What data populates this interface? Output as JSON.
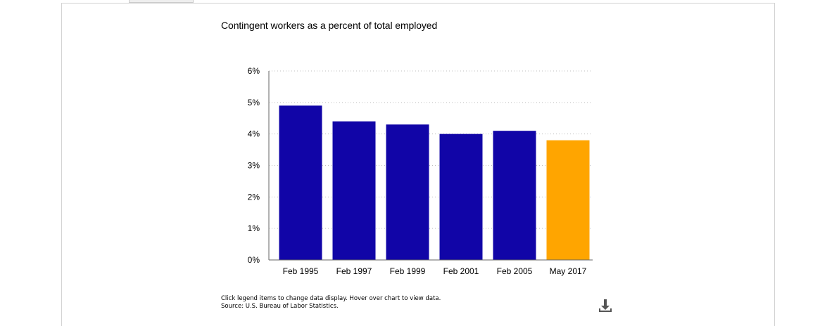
{
  "chart_data": {
    "type": "bar",
    "title": "Contingent workers as a percent of total employed",
    "categories": [
      "Feb 1995",
      "Feb 1997",
      "Feb 1999",
      "Feb 2001",
      "Feb 2005",
      "May 2017"
    ],
    "values": [
      4.9,
      4.4,
      4.3,
      4.0,
      4.1,
      3.8
    ],
    "y_unit": "%",
    "ylim": [
      0,
      6
    ],
    "yticks": [
      "0%",
      "1%",
      "2%",
      "3%",
      "4%",
      "5%",
      "6%"
    ],
    "grid": true,
    "colors": [
      "#1105a7",
      "#1105a7",
      "#1105a7",
      "#1105a7",
      "#1105a7",
      "#ffa500"
    ]
  },
  "footer": {
    "note": "Click legend items to change data display. Hover over chart to view data.",
    "source": "Source: U.S. Bureau of Labor Statistics."
  },
  "icons": {
    "download": "download-icon"
  }
}
